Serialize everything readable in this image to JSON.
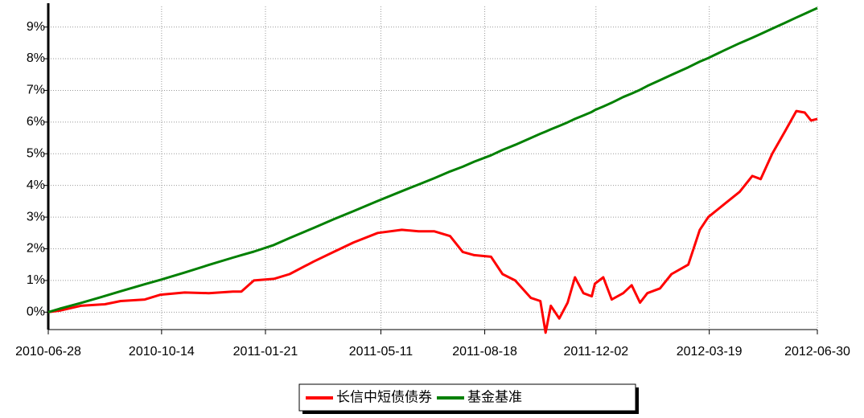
{
  "chart_data": {
    "type": "line",
    "x": [
      "2010-06-28",
      "2010-07-09",
      "2010-07-29",
      "2010-08-21",
      "2010-09-05",
      "2010-09-28",
      "2010-10-13",
      "2010-11-05",
      "2010-11-28",
      "2010-12-21",
      "2010-12-29",
      "2011-01-10",
      "2011-01-29",
      "2011-02-13",
      "2011-03-08",
      "2011-03-27",
      "2011-04-15",
      "2011-05-08",
      "2011-05-31",
      "2011-06-16",
      "2011-07-01",
      "2011-07-16",
      "2011-07-28",
      "2011-08-08",
      "2011-08-24",
      "2011-09-04",
      "2011-09-16",
      "2011-10-01",
      "2011-10-10",
      "2011-10-15",
      "2011-10-20",
      "2011-10-28",
      "2011-11-05",
      "2011-11-12",
      "2011-11-20",
      "2011-11-28",
      "2011-12-01",
      "2011-12-09",
      "2011-12-17",
      "2011-12-28",
      "2012-01-05",
      "2012-01-13",
      "2012-01-20",
      "2012-02-01",
      "2012-02-12",
      "2012-02-28",
      "2012-03-10",
      "2012-03-18",
      "2012-04-02",
      "2012-04-17",
      "2012-04-29",
      "2012-05-07",
      "2012-05-18",
      "2012-05-30",
      "2012-06-10",
      "2012-06-18",
      "2012-06-24",
      "2012-06-30"
    ],
    "series": [
      {
        "name": "长信中短债债券",
        "color": "#ff0000",
        "values": [
          0,
          0.05,
          0.2,
          0.25,
          0.35,
          0.4,
          0.55,
          0.62,
          0.6,
          0.65,
          0.65,
          1.0,
          1.05,
          1.2,
          1.6,
          1.9,
          2.2,
          2.5,
          2.6,
          2.55,
          2.55,
          2.4,
          1.9,
          1.8,
          1.75,
          1.2,
          1.0,
          0.45,
          0.35,
          -0.65,
          0.2,
          -0.2,
          0.3,
          1.1,
          0.6,
          0.5,
          0.9,
          1.1,
          0.4,
          0.6,
          0.85,
          0.3,
          0.6,
          0.75,
          1.2,
          1.5,
          2.6,
          3.0,
          3.4,
          3.8,
          4.3,
          4.2,
          5.0,
          5.7,
          6.35,
          6.3,
          6.05,
          6.1
        ]
      },
      {
        "name": "基金基准",
        "color": "#008000",
        "values": [
          0,
          0.11,
          0.29,
          0.51,
          0.66,
          0.88,
          1.02,
          1.25,
          1.49,
          1.72,
          1.8,
          1.91,
          2.12,
          2.34,
          2.66,
          2.93,
          3.19,
          3.51,
          3.82,
          4.03,
          4.23,
          4.44,
          4.59,
          4.75,
          4.95,
          5.12,
          5.28,
          5.5,
          5.63,
          5.7,
          5.77,
          5.88,
          5.99,
          6.1,
          6.21,
          6.32,
          6.38,
          6.49,
          6.61,
          6.79,
          6.9,
          7.02,
          7.14,
          7.32,
          7.49,
          7.73,
          7.91,
          8.02,
          8.26,
          8.49,
          8.66,
          8.78,
          8.95,
          9.13,
          9.3,
          9.42,
          9.51,
          9.6
        ]
      }
    ],
    "xlim": [
      "2010-06-28",
      "2012-06-30"
    ],
    "xticks": [
      "2010-06-28",
      "2010-10-14",
      "2011-01-21",
      "2011-05-11",
      "2011-08-18",
      "2011-12-02",
      "2012-03-19",
      "2012-06-30"
    ],
    "ylim": [
      -0.55,
      9.65
    ],
    "yticks": [
      {
        "value": 0,
        "label": "0%"
      },
      {
        "value": 1,
        "label": "1%"
      },
      {
        "value": 2,
        "label": "2%"
      },
      {
        "value": 3,
        "label": "3%"
      },
      {
        "value": 4,
        "label": "4%"
      },
      {
        "value": 5,
        "label": "5%"
      },
      {
        "value": 6,
        "label": "6%"
      },
      {
        "value": 7,
        "label": "7%"
      },
      {
        "value": 8,
        "label": "8%"
      },
      {
        "value": 9,
        "label": "9%"
      }
    ],
    "grid": true
  }
}
